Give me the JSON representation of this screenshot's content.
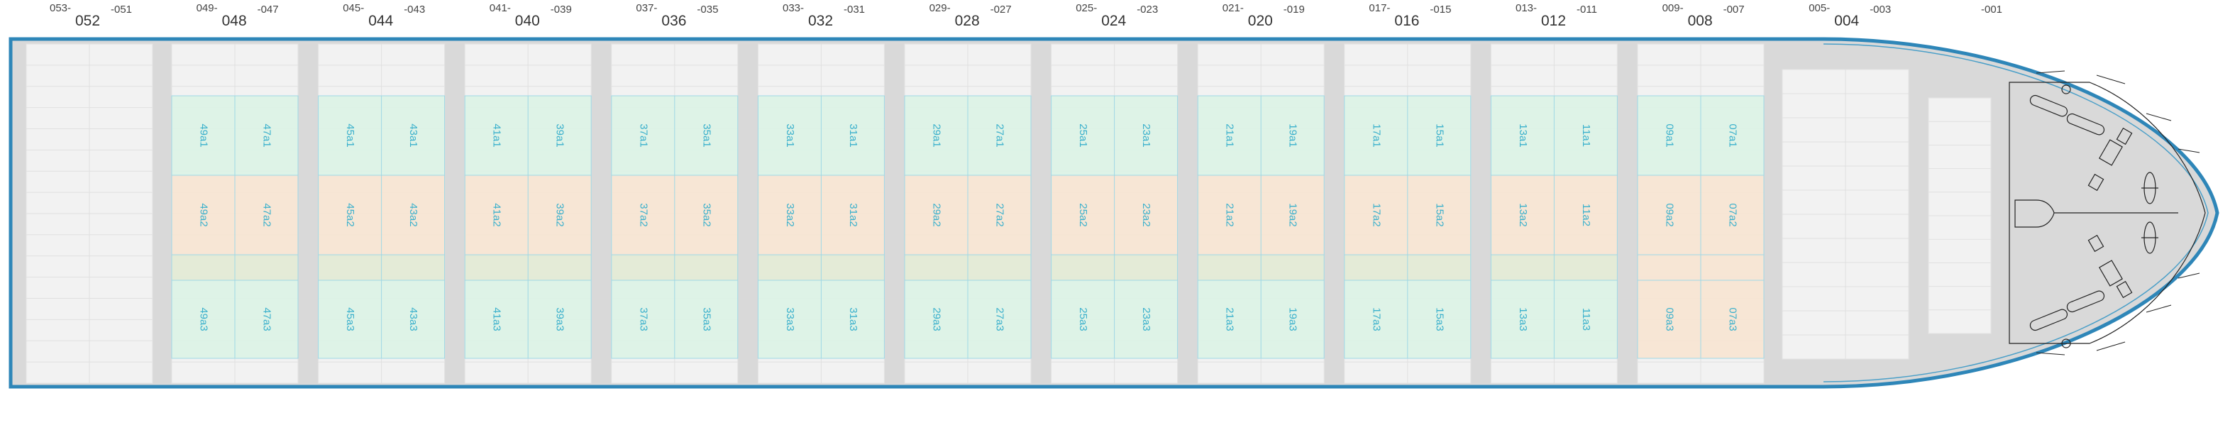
{
  "bay_numbers": [
    {
      "odd_left": "053",
      "pair": "052",
      "odd_right": "051"
    },
    {
      "odd_left": "049",
      "pair": "048",
      "odd_right": "047"
    },
    {
      "odd_left": "045",
      "pair": "044",
      "odd_right": "043"
    },
    {
      "odd_left": "041",
      "pair": "040",
      "odd_right": "039"
    },
    {
      "odd_left": "037",
      "pair": "036",
      "odd_right": "035"
    },
    {
      "odd_left": "033",
      "pair": "032",
      "odd_right": "031"
    },
    {
      "odd_left": "029",
      "pair": "028",
      "odd_right": "027"
    },
    {
      "odd_left": "025",
      "pair": "024",
      "odd_right": "023"
    },
    {
      "odd_left": "021",
      "pair": "020",
      "odd_right": "019"
    },
    {
      "odd_left": "017",
      "pair": "016",
      "odd_right": "015"
    },
    {
      "odd_left": "013",
      "pair": "012",
      "odd_right": "011"
    },
    {
      "odd_left": "009",
      "pair": "008",
      "odd_right": "007"
    },
    {
      "odd_left": "005",
      "pair": "004",
      "odd_right": "003"
    },
    {
      "odd_left": "",
      "pair": "",
      "odd_right": "001"
    }
  ],
  "holds": [
    {
      "left": [
        "49a1",
        "49a2",
        "49a3"
      ],
      "right": [
        "47a1",
        "47a2",
        "47a3"
      ]
    },
    {
      "left": [
        "45a1",
        "45a2",
        "45a3"
      ],
      "right": [
        "43a1",
        "43a2",
        "43a3"
      ]
    },
    {
      "left": [
        "41a1",
        "41a2",
        "41a3"
      ],
      "right": [
        "39a1",
        "39a2",
        "39a3"
      ]
    },
    {
      "left": [
        "37a1",
        "37a2",
        "37a3"
      ],
      "right": [
        "35a1",
        "35a2",
        "35a3"
      ]
    },
    {
      "left": [
        "33a1",
        "33a2",
        "33a3"
      ],
      "right": [
        "31a1",
        "31a2",
        "31a3"
      ]
    },
    {
      "left": [
        "29a1",
        "29a2",
        "29a3"
      ],
      "right": [
        "27a1",
        "27a2",
        "27a3"
      ]
    },
    {
      "left": [
        "25a1",
        "25a2",
        "25a3"
      ],
      "right": [
        "23a1",
        "23a2",
        "23a3"
      ]
    },
    {
      "left": [
        "21a1",
        "21a2",
        "21a3"
      ],
      "right": [
        "19a1",
        "19a2",
        "19a3"
      ]
    },
    {
      "left": [
        "17a1",
        "17a2",
        "17a3"
      ],
      "right": [
        "15a1",
        "15a2",
        "15a3"
      ]
    },
    {
      "left": [
        "13a1",
        "13a2",
        "13a3"
      ],
      "right": [
        "11a1",
        "11a2",
        "11a3"
      ]
    },
    {
      "left": [
        "09a1",
        "09a2",
        "09a3"
      ],
      "right": [
        "07a1",
        "07a2",
        "07a3"
      ]
    }
  ],
  "colors": {
    "hull_outline": "#2e86b8",
    "deck": "#d9d9d9",
    "grid_bg": "#f2f2f2",
    "zone_top": "#dcf3e6",
    "zone_mid": "#f7e4d2",
    "zone_band": "#e2ead4",
    "zone_bottom": "#dcf3e6",
    "zone_bottom_warm": "#f7e4d2",
    "label": "#3ab0cc"
  }
}
